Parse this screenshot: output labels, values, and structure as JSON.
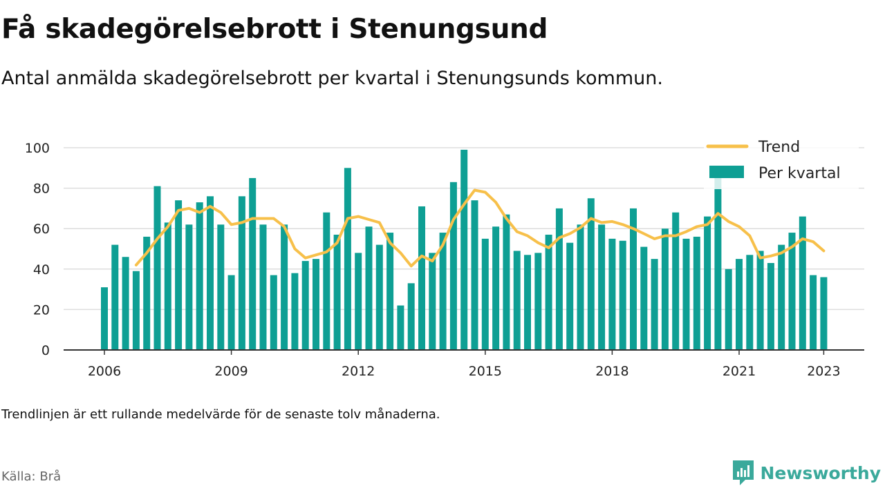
{
  "title": "Få skadegörelsebrott i Stenungsund",
  "subtitle": "Antal anmälda skadegörelsebrott per kvartal i Stenungsunds kommun.",
  "footnote": "Trendlinjen är ett rullande medelvärde för de senaste tolv månaderna.",
  "source": "Källa: Brå",
  "brand": {
    "name": "Newsworthy",
    "icon": "newsworthy-logo-icon"
  },
  "colors": {
    "bars": "#0e9f94",
    "trend": "#f7c04a",
    "grid": "#dddddd",
    "axis": "#333333"
  },
  "chart_data": {
    "type": "bar",
    "x_start": "2006 Q1",
    "interval": "quarter",
    "ylim": [
      0,
      100
    ],
    "yticks": [
      0,
      20,
      40,
      60,
      80,
      100
    ],
    "xticks": [
      "2006",
      "2009",
      "2012",
      "2015",
      "2018",
      "2021",
      "2023"
    ],
    "grid": true,
    "legend_position": "top-right",
    "series": [
      {
        "name": "Per kvartal",
        "type": "bar",
        "values": [
          31,
          52,
          46,
          39,
          56,
          81,
          63,
          74,
          62,
          73,
          76,
          62,
          37,
          76,
          85,
          62,
          37,
          62,
          38,
          44,
          45,
          68,
          57,
          90,
          48,
          61,
          52,
          58,
          22,
          33,
          71,
          48,
          58,
          83,
          99,
          74,
          55,
          61,
          67,
          49,
          47,
          48,
          57,
          70,
          53,
          62,
          75,
          62,
          55,
          54,
          70,
          51,
          45,
          60,
          68,
          55,
          56,
          66,
          85,
          40,
          45,
          47,
          49,
          43,
          52,
          58,
          66,
          37,
          36
        ]
      },
      {
        "name": "Trend",
        "type": "line",
        "values": [
          null,
          null,
          null,
          42,
          48,
          55,
          61,
          69,
          70,
          68,
          71,
          68,
          62,
          63,
          65,
          65,
          65,
          61,
          50,
          45.5,
          47,
          48.5,
          53,
          65,
          66,
          64.5,
          63,
          53,
          48,
          41.5,
          46.5,
          44,
          52,
          64.5,
          72,
          79,
          78,
          73,
          65,
          58.5,
          56.5,
          53,
          50.5,
          55.5,
          57.5,
          60.5,
          65,
          63,
          63.5,
          62,
          60,
          57.5,
          55,
          56.5,
          56.5,
          58.5,
          61,
          62,
          67.5,
          63.5,
          61,
          56.5,
          45.5,
          46.5,
          48,
          51,
          55,
          53.5,
          49
        ]
      }
    ]
  }
}
